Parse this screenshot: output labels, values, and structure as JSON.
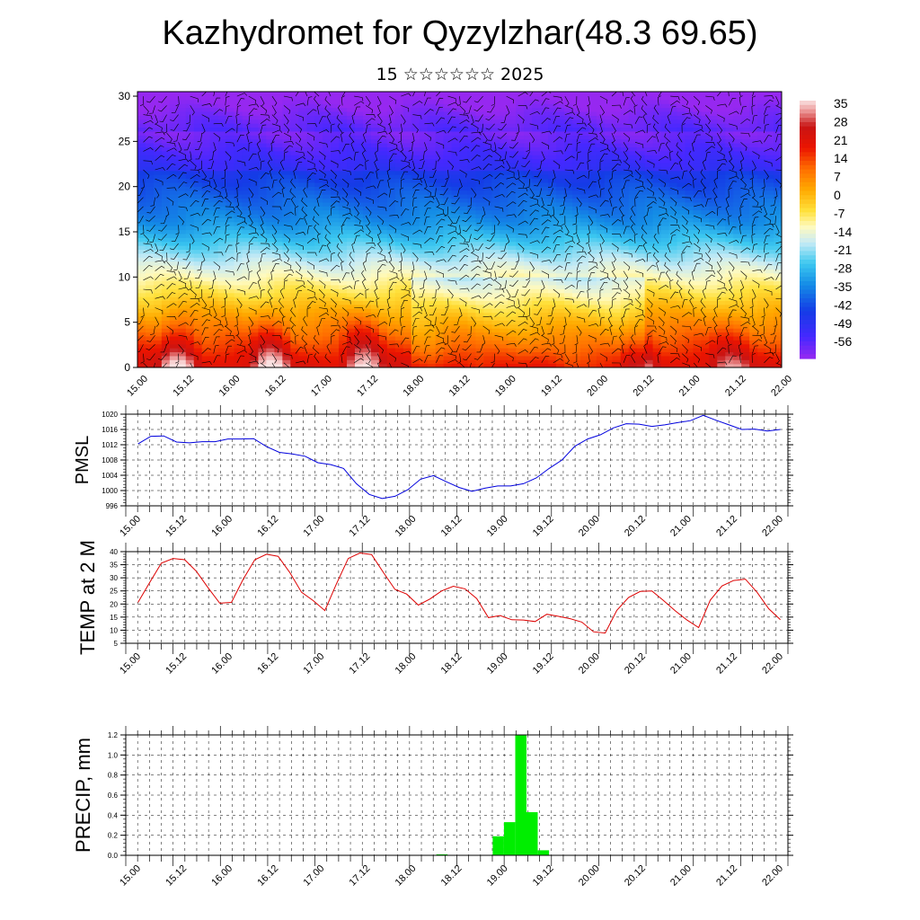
{
  "title": "Kazhydromet for Qyzylzhar(48.3 69.65)",
  "subtitle": "15 ☆☆☆☆☆☆ 2025",
  "time_labels": [
    "15.00",
    "15.12",
    "16.00",
    "16.12",
    "17.00",
    "17.12",
    "18.00",
    "18.12",
    "19.00",
    "19.12",
    "20.00",
    "20.12",
    "21.00",
    "21.12",
    "22.00"
  ],
  "colors": {
    "pmsl_line": "#0000dd",
    "temp_line": "#dd0000",
    "precip_bar": "#00ee00",
    "grid": "#000000"
  },
  "chart_data": [
    {
      "type": "heatmap",
      "name": "cross-section",
      "ylabel": "",
      "yticks": [
        "0",
        "5",
        "10",
        "15",
        "20",
        "25",
        "30"
      ],
      "ylim": [
        0,
        30.5
      ],
      "colorbar": {
        "labels": [
          "35",
          "28",
          "21",
          "14",
          "7",
          "0",
          "-7",
          "-14",
          "-21",
          "-28",
          "-35",
          "-42",
          "-49",
          "-56"
        ],
        "range": [
          -60,
          38
        ]
      },
      "overlay": "wind barbs"
    },
    {
      "type": "line",
      "name": "pmsl",
      "ylabel": "PMSL",
      "yticks": [
        "996",
        "1000",
        "1004",
        "1008",
        "1012",
        "1016",
        "1020"
      ],
      "ylim": [
        996,
        1020
      ],
      "x_start": 15.0,
      "step_hours": 3,
      "values": [
        1012.2,
        1014.2,
        1014.3,
        1012.7,
        1012.5,
        1012.8,
        1012.8,
        1013.5,
        1013.5,
        1013.6,
        1011.5,
        1010.0,
        1009.6,
        1009.0,
        1007.3,
        1006.8,
        1005.8,
        1001.8,
        999.0,
        997.9,
        998.5,
        1000.2,
        1003.0,
        1003.9,
        1002.3,
        1000.8,
        999.8,
        1000.6,
        1001.2,
        1001.2,
        1001.8,
        1003.3,
        1005.8,
        1008.0,
        1011.6,
        1013.5,
        1014.6,
        1016.4,
        1017.5,
        1017.4,
        1016.8,
        1017.2,
        1017.8,
        1018.3,
        1019.7,
        1018.4,
        1017.2,
        1016.0,
        1016.1,
        1015.6,
        1016.0
      ]
    },
    {
      "type": "line",
      "name": "temp",
      "ylabel": "TEMP at 2 M",
      "yticks": [
        "5",
        "10",
        "15",
        "20",
        "25",
        "30",
        "35",
        "40"
      ],
      "ylim": [
        5,
        40
      ],
      "x_start": 15.0,
      "step_hours": 3,
      "values": [
        20.6,
        28.2,
        35.6,
        37.4,
        36.9,
        32.5,
        26.2,
        20.3,
        20.6,
        29.4,
        36.9,
        39.0,
        38.2,
        32.0,
        24.5,
        21.3,
        17.5,
        27.8,
        37.4,
        39.5,
        38.9,
        32.1,
        25.6,
        23.8,
        19.6,
        21.9,
        25.0,
        26.8,
        25.8,
        22.1,
        14.8,
        15.6,
        14.0,
        13.9,
        13.3,
        16.1,
        15.3,
        14.4,
        13.1,
        9.4,
        8.9,
        17.6,
        22.5,
        24.8,
        25.0,
        21.3,
        17.4,
        13.9,
        11.0,
        21.5,
        26.9,
        29.0,
        29.5,
        24.5,
        18.2,
        14.0
      ]
    },
    {
      "type": "bar",
      "name": "precip",
      "ylabel": "PRECIP, mm",
      "yticks": [
        "0.0",
        "0.2",
        "0.4",
        "0.6",
        "0.8",
        "1.0",
        "1.2"
      ],
      "ylim": [
        0,
        1.2
      ],
      "x_start": 15.0,
      "step_hours": 3,
      "values": [
        0,
        0,
        0,
        0,
        0,
        0,
        0,
        0,
        0,
        0,
        0,
        0,
        0,
        0,
        0,
        0,
        0,
        0,
        0,
        0,
        0,
        0,
        0,
        0,
        0,
        0,
        0,
        0.01,
        0,
        0,
        0,
        0,
        0.19,
        0.33,
        1.2,
        0.43,
        0.05,
        0,
        0,
        0,
        0,
        0,
        0,
        0,
        0,
        0,
        0,
        0,
        0,
        0,
        0,
        0,
        0,
        0,
        0,
        0,
        0
      ]
    }
  ]
}
